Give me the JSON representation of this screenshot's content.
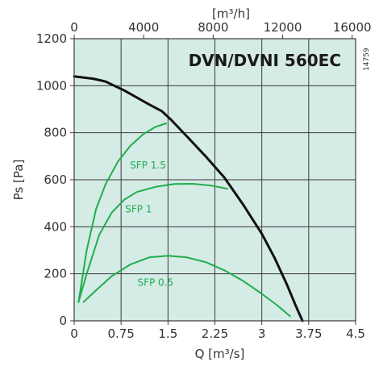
{
  "chart_data": {
    "type": "line",
    "title": "DVN/DVNI 560EC",
    "code": "14759",
    "xlabel_bottom": "Q [m³/s]",
    "xlabel_top": "[m³/h]",
    "ylabel": "Ps [Pa]",
    "xlim": [
      0,
      4.5
    ],
    "ylim": [
      0,
      1200
    ],
    "x_ticks": [
      "0",
      "0.75",
      "1.5",
      "2.25",
      "3",
      "3.75",
      "4.5"
    ],
    "x_ticks_top": [
      "0",
      "4000",
      "8000",
      "12000",
      "16000"
    ],
    "y_ticks": [
      "0",
      "200",
      "400",
      "600",
      "800",
      "1000",
      "1200"
    ],
    "grid": true,
    "background": "#d5ebe6",
    "colors": {
      "fan": "#111111",
      "sfp": "#1fae4c",
      "grid": "#3a3a3a",
      "text": "#333333"
    },
    "series": [
      {
        "kind": "fan",
        "x": [
          0,
          0.3,
          0.5,
          0.8,
          1.0,
          1.2,
          1.4,
          1.55,
          1.8,
          2.1,
          2.4,
          2.7,
          3.0,
          3.2,
          3.4,
          3.55,
          3.65
        ],
        "y": [
          1040,
          1030,
          1018,
          980,
          950,
          920,
          892,
          855,
          785,
          700,
          610,
          495,
          370,
          270,
          155,
          60,
          0
        ]
      },
      {
        "kind": "sfp",
        "label": "SFP 1.5",
        "x": [
          0.07,
          0.2,
          0.35,
          0.5,
          0.7,
          0.9,
          1.1,
          1.3,
          1.47
        ],
        "y": [
          80,
          300,
          475,
          580,
          678,
          745,
          793,
          825,
          840
        ]
      },
      {
        "kind": "sfp",
        "label": "SFP 1",
        "x": [
          0.07,
          0.2,
          0.4,
          0.6,
          0.8,
          1.0,
          1.3,
          1.6,
          1.9,
          2.2,
          2.45
        ],
        "y": [
          80,
          200,
          365,
          460,
          515,
          548,
          570,
          582,
          583,
          575,
          562
        ]
      },
      {
        "kind": "sfp",
        "label": "SFP 0.5",
        "x": [
          0.15,
          0.35,
          0.6,
          0.9,
          1.2,
          1.5,
          1.8,
          2.1,
          2.4,
          2.7,
          3.0,
          3.25,
          3.45
        ],
        "y": [
          80,
          130,
          190,
          240,
          270,
          277,
          270,
          250,
          215,
          170,
          115,
          65,
          20
        ]
      }
    ]
  }
}
